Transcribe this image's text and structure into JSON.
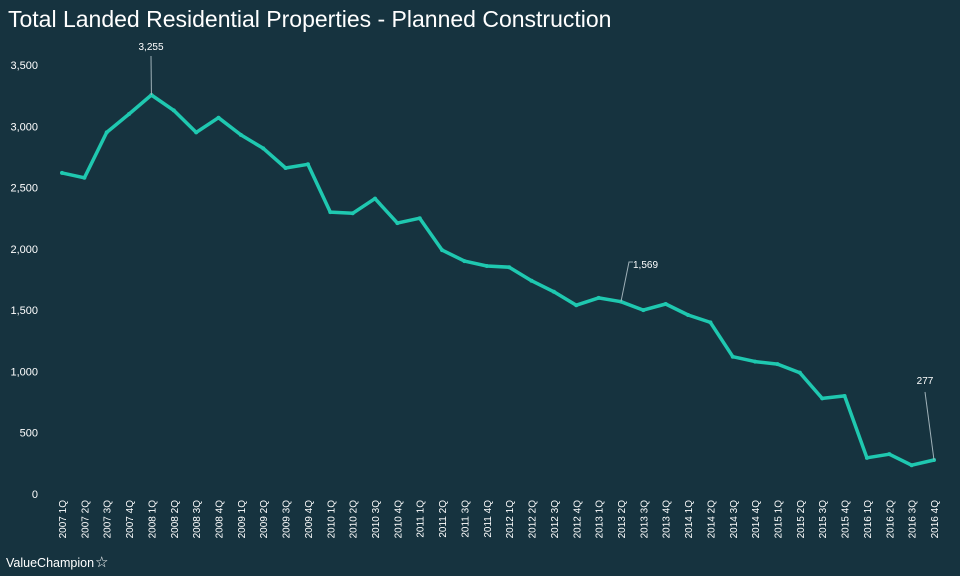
{
  "brand": {
    "name": "ValueChampion",
    "icon": "star-icon"
  },
  "colors": {
    "background": "#16333f",
    "line": "#1fc8b0",
    "text": "#ffffff",
    "leader": "#9fb1b8"
  },
  "chart_data": {
    "type": "line",
    "title": "Total Landed Residential Properties - Planned Construction",
    "xlabel": "",
    "ylabel": "",
    "ylim": [
      0,
      3500
    ],
    "yticks": [
      0,
      500,
      1000,
      1500,
      2000,
      2500,
      3000,
      3500
    ],
    "ytick_labels": [
      "0",
      "500",
      "1,000",
      "1,500",
      "2,000",
      "2,500",
      "3,000",
      "3,500"
    ],
    "grid": false,
    "legend": "none",
    "categories": [
      "2007 1Q",
      "2007 2Q",
      "2007 3Q",
      "2007 4Q",
      "2008 1Q",
      "2008 2Q",
      "2008 3Q",
      "2008 4Q",
      "2009 1Q",
      "2009 2Q",
      "2009 3Q",
      "2009 4Q",
      "2010 1Q",
      "2010 2Q",
      "2010 3Q",
      "2010 4Q",
      "2011 1Q",
      "2011 2Q",
      "2011 3Q",
      "2011 4Q",
      "2012 1Q",
      "2012 2Q",
      "2012 3Q",
      "2012 4Q",
      "2013 1Q",
      "2013 2Q",
      "2013 3Q",
      "2013 4Q",
      "2014 1Q",
      "2014 2Q",
      "2014 3Q",
      "2014 4Q",
      "2015 1Q",
      "2015 2Q",
      "2015 3Q",
      "2015 4Q",
      "2016 1Q",
      "2016 2Q",
      "2016 3Q",
      "2016 4Q"
    ],
    "series": [
      {
        "values": [
          2620,
          2580,
          2950,
          3100,
          3255,
          3130,
          2950,
          3070,
          2930,
          2820,
          2660,
          2690,
          2300,
          2290,
          2410,
          2210,
          2250,
          1990,
          1900,
          1860,
          1850,
          1740,
          1650,
          1540,
          1600,
          1569,
          1500,
          1550,
          1460,
          1400,
          1120,
          1080,
          1060,
          990,
          780,
          800,
          295,
          325,
          235,
          277
        ]
      }
    ],
    "annotations": [
      {
        "category": "2008 1Q",
        "value": 3255,
        "text": "3,255"
      },
      {
        "category": "2013 2Q",
        "value": 1569,
        "text": "1,569"
      },
      {
        "category": "2016 4Q",
        "value": 277,
        "text": "277"
      }
    ]
  }
}
